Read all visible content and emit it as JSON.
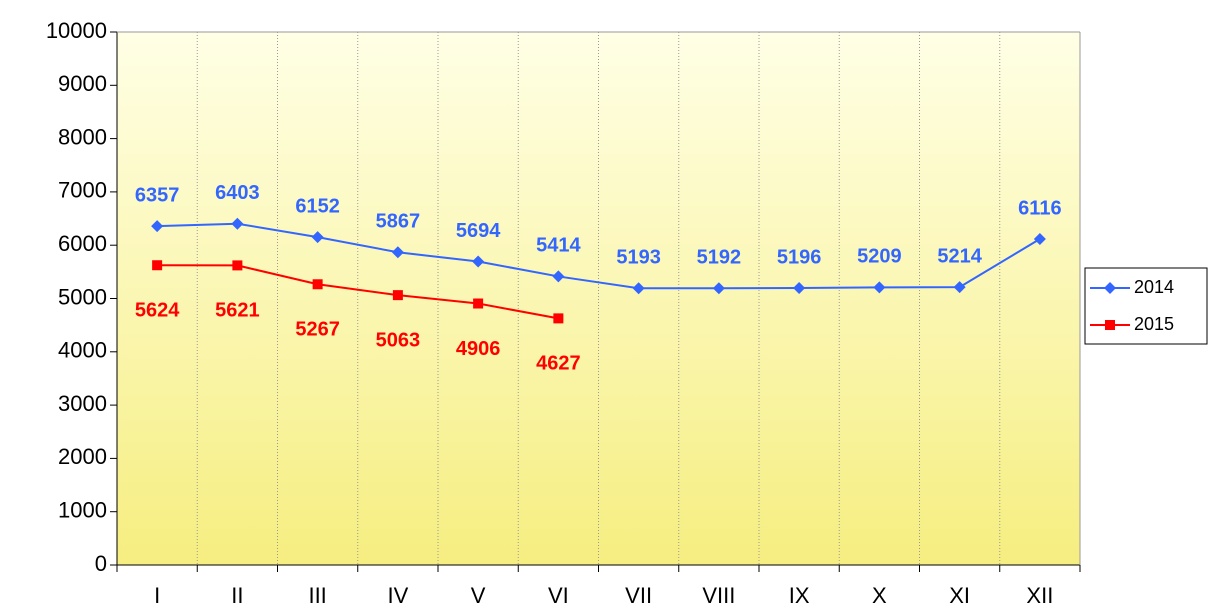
{
  "chart_data": {
    "type": "line",
    "categories": [
      "I",
      "II",
      "III",
      "IV",
      "V",
      "VI",
      "VII",
      "VIII",
      "IX",
      "X",
      "XI",
      "XII"
    ],
    "series": [
      {
        "name": "2014",
        "color": "#3366ff",
        "marker": "diamond",
        "values": [
          6357,
          6403,
          6152,
          5867,
          5694,
          5414,
          5193,
          5192,
          5196,
          5209,
          5214,
          6116
        ]
      },
      {
        "name": "2015",
        "color": "#ff0000",
        "marker": "square",
        "values": [
          5624,
          5621,
          5267,
          5063,
          4906,
          4627,
          null,
          null,
          null,
          null,
          null,
          null
        ]
      }
    ],
    "ylim": [
      0,
      10000
    ],
    "yticks": [
      0,
      1000,
      2000,
      3000,
      4000,
      5000,
      6000,
      7000,
      8000,
      9000,
      10000
    ],
    "grid": true,
    "legend": "right"
  }
}
